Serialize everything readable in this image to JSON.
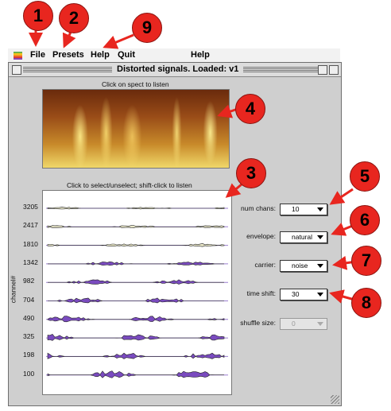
{
  "menubar": {
    "items": [
      "File",
      "Presets",
      "Help",
      "Quit"
    ],
    "help_right": "Help"
  },
  "window": {
    "title": "Distorted signals. Loaded: v1"
  },
  "spectrogram": {
    "caption": "Click on spect to listen"
  },
  "channels": {
    "caption": "Click to select/unselect; shift-click to listen",
    "axis_label": "channel#",
    "labels": [
      "3205",
      "2417",
      "1810",
      "1342",
      "982",
      "704",
      "490",
      "325",
      "198",
      "100"
    ],
    "colors": {
      "fill": "#7a4bbf",
      "line": "#e6e6c8",
      "outline": "#222222"
    }
  },
  "controls": {
    "num_chans": {
      "label": "num chans:",
      "value": "10"
    },
    "envelope": {
      "label": "envelope:",
      "value": "natural"
    },
    "carrier": {
      "label": "carrier:",
      "value": "noise"
    },
    "time_shift": {
      "label": "time shift:",
      "value": "30"
    },
    "shuffle_size": {
      "label": "shuffle size:",
      "value": "0"
    }
  },
  "callouts": [
    "1",
    "2",
    "9",
    "4",
    "3",
    "5",
    "6",
    "7",
    "8"
  ],
  "colors": {
    "callout": "#e8261f",
    "window_bg": "#cfcfcf"
  }
}
